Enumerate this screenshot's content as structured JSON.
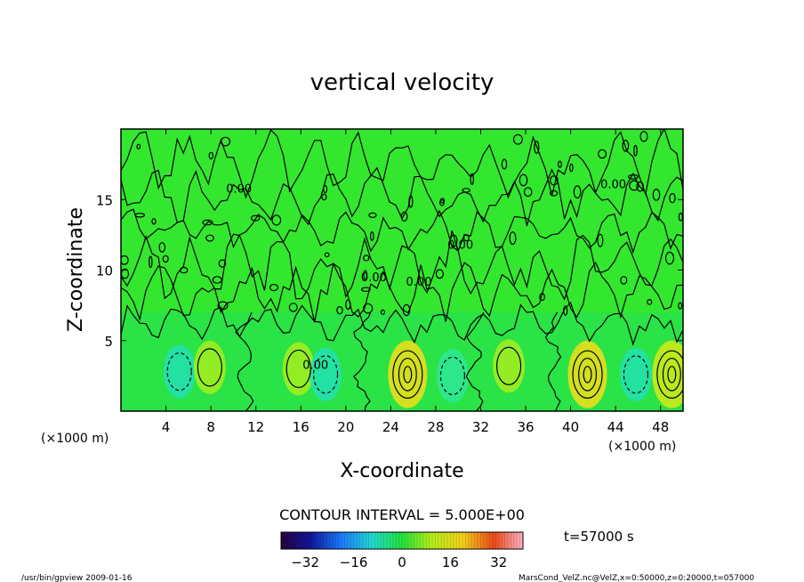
{
  "chart_data": {
    "type": "heatmap",
    "title": "vertical velocity",
    "xlabel": "X-coordinate",
    "ylabel": "Z-coordinate",
    "x_units": "(×1000 m)",
    "z_units": "(×1000 m)",
    "xlim": [
      0,
      50
    ],
    "zlim": [
      0,
      20
    ],
    "x_ticks": [
      "4",
      "8",
      "12",
      "16",
      "20",
      "24",
      "28",
      "32",
      "36",
      "40",
      "44",
      "48"
    ],
    "z_ticks": [
      "5",
      "10",
      "15"
    ],
    "contour_labels": [
      "0.00",
      "0.00",
      "0.00",
      "0.00",
      "0.00",
      "0.00"
    ],
    "contour_interval_text": "CONTOUR INTERVAL = 5.000E+00",
    "colorbar": {
      "range": [
        -40,
        40
      ],
      "ticks": [
        "−32",
        "−16",
        "0",
        "16",
        "32"
      ]
    },
    "time_label": "t=57000 s",
    "cells": [
      {
        "x": 5.2,
        "z": 2.8,
        "value": -5
      },
      {
        "x": 7.9,
        "z": 3.1,
        "value": 5
      },
      {
        "x": 15.8,
        "z": 3.0,
        "value": 3
      },
      {
        "x": 18.2,
        "z": 2.6,
        "value": -5
      },
      {
        "x": 25.5,
        "z": 2.6,
        "value": 15
      },
      {
        "x": 29.5,
        "z": 2.5,
        "value": -3
      },
      {
        "x": 34.5,
        "z": 3.2,
        "value": 3
      },
      {
        "x": 41.5,
        "z": 2.6,
        "value": 12
      },
      {
        "x": 45.8,
        "z": 2.6,
        "value": -5
      },
      {
        "x": 49.0,
        "z": 2.6,
        "value": 10
      }
    ]
  },
  "footer": {
    "left": "/usr/bin/gpview   2009-01-16",
    "right": "MarsCond_VelZ.nc@VelZ,x=0:50000,z=0:20000,t=057000"
  }
}
